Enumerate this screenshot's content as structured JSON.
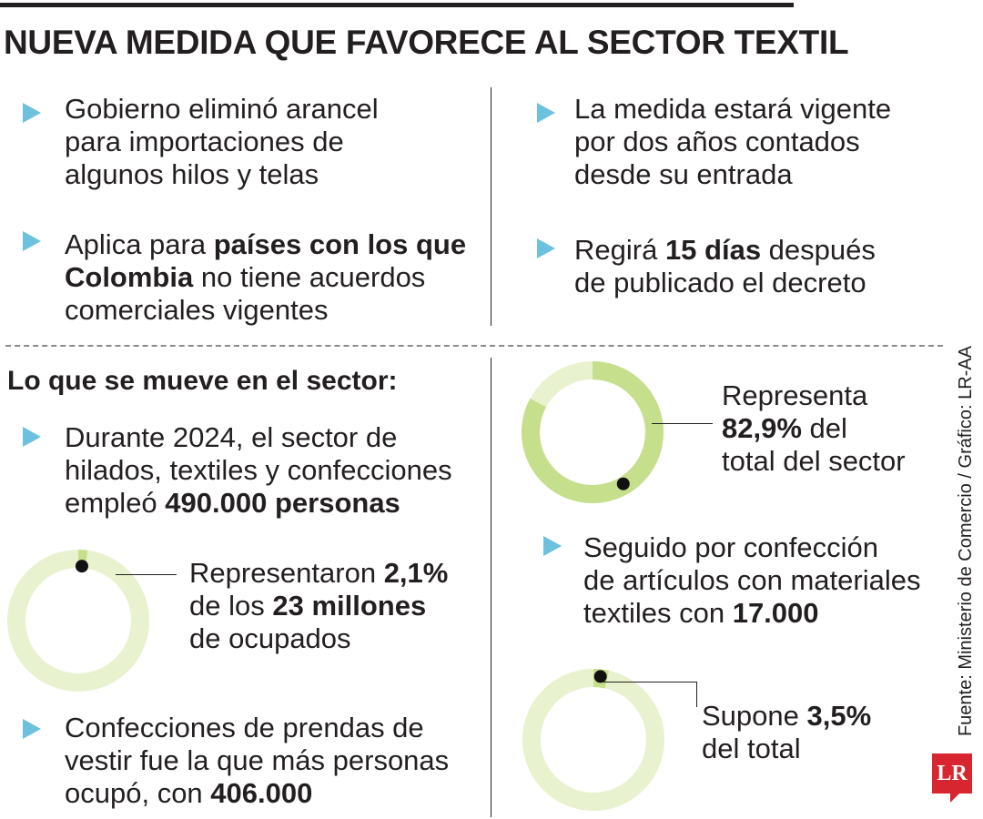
{
  "title": "NUEVA MEDIDA QUE FAVORECE AL SECTOR TEXTIL",
  "colors": {
    "bullet": "#6cc1df",
    "donut_fill": "#c6df8c",
    "donut_track": "#e9f2ce",
    "logo": "#d7262f"
  },
  "bullets": {
    "b1": {
      "lines": [
        "Gobierno eliminó arancel",
        "para importaciones de",
        "algunos hilos y telas"
      ]
    },
    "b2": {
      "l1_pre": "Aplica para ",
      "l1_bold": "países con los que",
      "l2_bold1": "Colombia",
      "l2_bold2": " no tiene acuerdos",
      "l3": "comerciales vigentes"
    },
    "b3": {
      "lines": [
        "La medida estará vigente",
        "por dos años contados",
        "desde su entrada"
      ]
    },
    "b4": {
      "l1_pre": "Regirá ",
      "l1_bold": "15 días",
      "l1_post": " después",
      "l2": "de publicado el decreto"
    }
  },
  "section": {
    "heading": "Lo que se mueve en el sector:",
    "p1": {
      "l1": "Durante 2024, el sector de",
      "l2": "hilados, textiles y confecciones",
      "l3_pre": "empleó ",
      "l3_bold": "490.000 personas"
    },
    "p2": {
      "l1_pre": "Representaron ",
      "l1_bold": "2,1%",
      "l2_pre": "de los ",
      "l2_bold": "23 millones",
      "l3": "de ocupados"
    },
    "p3": {
      "l1": "Confecciones de prendas de",
      "l2": "vestir fue la que más personas",
      "l3_pre": "ocupó, con ",
      "l3_bold": "406.000"
    },
    "p4": {
      "l1": "Representa",
      "l2_bold": "82,9%",
      "l2_post": " del",
      "l3": "total del sector"
    },
    "p5": {
      "l1": "Seguido por confección",
      "l2": "de artículos con materiales",
      "l3_pre": "textiles con ",
      "l3_bold": "17.000"
    },
    "p6": {
      "l1_pre": "Supone ",
      "l1_bold": "3,5%",
      "l2": "del total"
    }
  },
  "chart_data": [
    {
      "type": "pie",
      "labels": [
        "Representaron 2,1% de los 23 millones de ocupados"
      ],
      "values": [
        2.1
      ]
    },
    {
      "type": "pie",
      "labels": [
        "Representa 82,9% del total del sector"
      ],
      "values": [
        82.9
      ]
    },
    {
      "type": "pie",
      "labels": [
        "Supone 3,5% del total"
      ],
      "values": [
        3.5
      ]
    }
  ],
  "source": "Fuente: Ministerio de Comercio / Gráfico: LR-AA",
  "logo_text": "LR"
}
